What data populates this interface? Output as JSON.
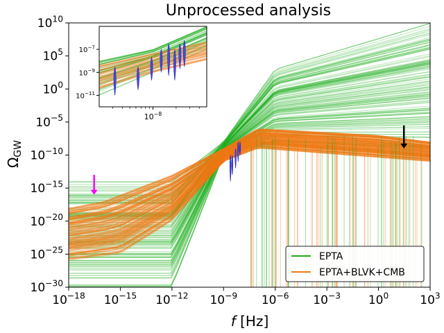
{
  "chart_data": [
    {
      "type": "line",
      "title": "Unprocessed analysis",
      "xlabel": "f [Hz]",
      "ylabel": "Ω_GW",
      "x_scale": "log",
      "y_scale": "log",
      "xlim": [
        1e-18,
        1000
      ],
      "ylim": [
        1e-30,
        10000000000.0
      ],
      "grid": false,
      "legend_position": "bottom-right",
      "x_ticks": [
        {
          "value": 1e-18,
          "base": "10",
          "exp": "−18"
        },
        {
          "value": 1e-15,
          "base": "10",
          "exp": "−15"
        },
        {
          "value": 1e-12,
          "base": "10",
          "exp": "−12"
        },
        {
          "value": 1e-09,
          "base": "10",
          "exp": "−9"
        },
        {
          "value": 1e-06,
          "base": "10",
          "exp": "−6"
        },
        {
          "value": 0.001,
          "base": "10",
          "exp": "−3"
        },
        {
          "value": 1,
          "base": "10",
          "exp": "0"
        },
        {
          "value": 1000,
          "base": "10",
          "exp": "3"
        }
      ],
      "y_ticks": [
        {
          "value": 10000000000.0,
          "base": "10",
          "exp": "10"
        },
        {
          "value": 100000.0,
          "base": "10",
          "exp": "5"
        },
        {
          "value": 1,
          "base": "10",
          "exp": "0"
        },
        {
          "value": 1e-05,
          "base": "10",
          "exp": "−5"
        },
        {
          "value": 1e-10,
          "base": "10",
          "exp": "−10"
        },
        {
          "value": 1e-15,
          "base": "10",
          "exp": "−15"
        },
        {
          "value": 1e-20,
          "base": "10",
          "exp": "−20"
        },
        {
          "value": 1e-25,
          "base": "10",
          "exp": "−25"
        },
        {
          "value": 1e-30,
          "base": "10",
          "exp": "−30"
        }
      ],
      "series": [
        {
          "name": "EPTA",
          "color": "#1aab1a",
          "median_curve": [
            [
              1e-18,
              1e-30
            ],
            [
              1e-12,
              1e-21
            ],
            [
              1e-09,
              3e-10
            ],
            [
              1e-06,
              0.0001
            ],
            [
              1,
              100.0
            ],
            [
              1000,
              1000000.0
            ]
          ],
          "upper_envelope": [
            [
              1e-12,
              1e-14
            ],
            [
              1e-09,
              1e-08
            ],
            [
              1e-06,
              1000.0
            ],
            [
              1000,
              10000000000.0
            ]
          ],
          "lower_envelope": [
            [
              1e-12,
              1e-30
            ],
            [
              1e-09,
              1e-10
            ],
            [
              1e-06,
              1e-08
            ],
            [
              1000,
              1e-09
            ]
          ]
        },
        {
          "name": "EPTA+BLVK+CMB",
          "color": "#f07814",
          "median_curve": [
            [
              1e-18,
              1e-22
            ],
            [
              1e-15,
              1e-20
            ],
            [
              1e-12,
              1e-15
            ],
            [
              1e-09,
              1e-10
            ],
            [
              1e-07,
              1e-07
            ],
            [
              0.0001,
              1e-07
            ],
            [
              1,
              1e-08
            ],
            [
              1000,
              1e-09
            ]
          ],
          "upper_envelope": [
            [
              1e-18,
              1e-18
            ],
            [
              1e-16,
              1e-17
            ],
            [
              1e-12,
              1e-13
            ],
            [
              1e-09,
              1e-09
            ],
            [
              1e-07,
              1e-06
            ],
            [
              1,
              1e-07
            ],
            [
              1000,
              1e-08
            ]
          ],
          "lower_envelope": [
            [
              1e-18,
              1e-26
            ],
            [
              1e-15,
              1e-25
            ],
            [
              1e-12,
              1e-20
            ],
            [
              1e-09,
              1e-11
            ],
            [
              1e-07,
              1e-09
            ],
            [
              1000,
              1e-11
            ]
          ]
        }
      ],
      "pta_violins": [
        {
          "f": 2.5e-09,
          "lo": 1e-14,
          "hi": 1e-10
        },
        {
          "f": 3.2e-09,
          "lo": 1e-13,
          "hi": 1e-10
        },
        {
          "f": 5e-09,
          "lo": 1e-12,
          "hi": 1e-09
        },
        {
          "f": 7e-09,
          "lo": 1e-11,
          "hi": 1e-08
        },
        {
          "f": 9e-09,
          "lo": 1e-10,
          "hi": 1e-08
        }
      ],
      "annotations": [
        {
          "type": "arrow",
          "color": "#ff00ff",
          "x": 3e-17,
          "y_from": 1e-13,
          "y_to": 1e-16
        },
        {
          "type": "arrow",
          "color": "#000000",
          "x": 30,
          "y_from": 3e-06,
          "y_to": 1e-09
        }
      ]
    },
    {
      "type": "line",
      "role": "inset",
      "x_scale": "log",
      "y_scale": "log",
      "xlim": [
        2e-09,
        5e-08
      ],
      "ylim": [
        1e-12,
        1e-05
      ],
      "x_ticks": [
        {
          "value": 1e-08,
          "base": "10",
          "exp": "−8"
        }
      ],
      "y_ticks": [
        {
          "value": 1e-07,
          "base": "10",
          "exp": "−7"
        },
        {
          "value": 1e-09,
          "base": "10",
          "exp": "−9"
        },
        {
          "value": 1e-11,
          "base": "10",
          "exp": "−11"
        }
      ],
      "series": [
        {
          "name": "EPTA",
          "color": "#1aab1a",
          "band": [
            [
              2e-09,
              1e-08,
              1e-11
            ],
            [
              1e-08,
              1e-07,
              1e-09
            ],
            [
              5e-08,
              1e-05,
              1e-07
            ]
          ]
        },
        {
          "name": "EPTA+BLVK+CMB",
          "color": "#f07814",
          "band": [
            [
              2e-09,
              5e-09,
              3e-11
            ],
            [
              1e-08,
              5e-08,
              8e-10
            ],
            [
              5e-08,
              5e-07,
              1e-08
            ]
          ]
        }
      ],
      "violins": [
        {
          "f": 3.2e-09,
          "lo": 1e-11,
          "hi": 3e-09
        },
        {
          "f": 6.4e-09,
          "lo": 3e-11,
          "hi": 3e-09
        },
        {
          "f": 9.6e-09,
          "lo": 2e-10,
          "hi": 2e-08
        },
        {
          "f": 1.28e-08,
          "lo": 1e-09,
          "hi": 1e-07
        },
        {
          "f": 1.6e-08,
          "lo": 5e-10,
          "hi": 3e-07
        },
        {
          "f": 1.92e-08,
          "lo": 2e-10,
          "hi": 1e-07
        },
        {
          "f": 2.24e-08,
          "lo": 2e-09,
          "hi": 3e-07
        },
        {
          "f": 2.56e-08,
          "lo": 3e-09,
          "hi": 6e-07
        }
      ]
    }
  ]
}
